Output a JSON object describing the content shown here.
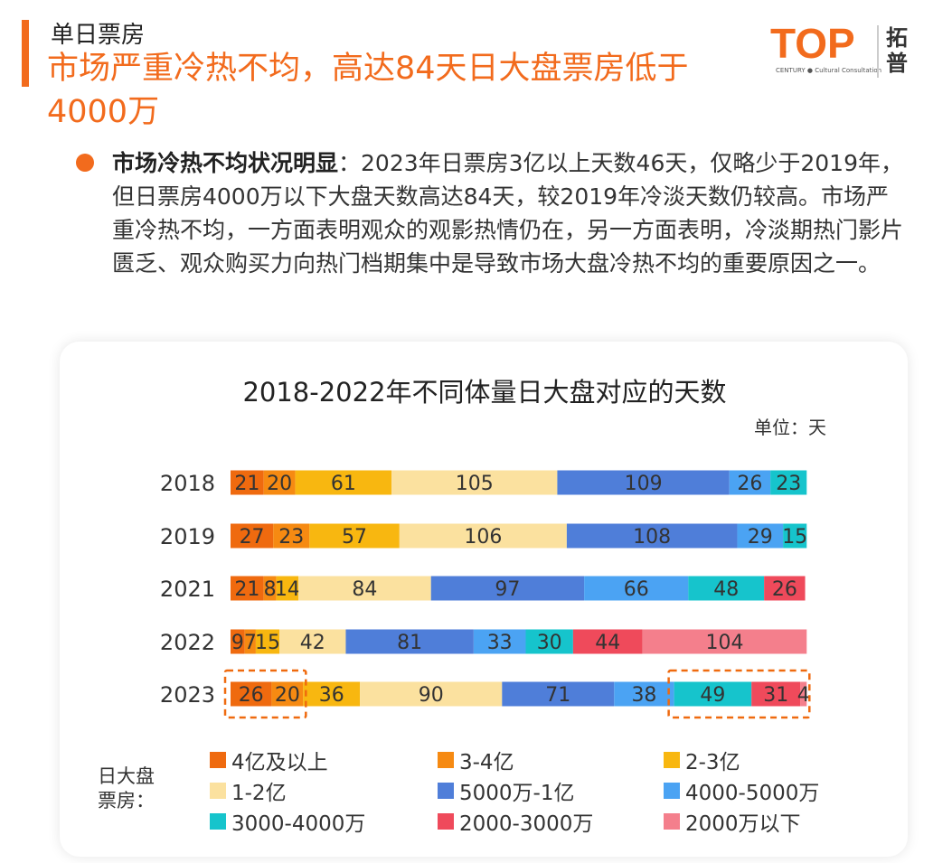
{
  "header": {
    "section_label": "单日票房",
    "headline": "市场严重冷热不均，高达84天日大盘票房低于4000万",
    "logo_text": "TOP",
    "logo_sub": "CENTURY ● Cultural Consultation",
    "logo_cn": "拓普"
  },
  "bullet": {
    "lead": "市场冷热不均状况明显",
    "text": "：2023年日票房3亿以上天数46天，仅略少于2019年，但日票房4000万以下大盘天数高达84天，较2019年冷淡天数仍较高。市场严重冷热不均，一方面表明观众的观影热情仍在，另一方面表明，冷淡期热门影片匮乏、观众购买力向热门档期集中是导致市场大盘冷热不均的重要原因之一。"
  },
  "legend_title": "日大盘票房：",
  "chart_data": {
    "type": "bar",
    "orientation": "horizontal",
    "stacked": true,
    "title": "2018-2022年不同体量日大盘对应的天数",
    "unit": "单位：天",
    "categories": [
      "2018",
      "2019",
      "2021",
      "2022",
      "2023"
    ],
    "series": [
      {
        "name": "4亿及以上",
        "color": "#ef6a0f",
        "values": [
          21,
          27,
          21,
          9,
          26
        ]
      },
      {
        "name": "3-4亿",
        "color": "#f68a12",
        "values": [
          20,
          23,
          8,
          7,
          20
        ]
      },
      {
        "name": "2-3亿",
        "color": "#f8b710",
        "values": [
          61,
          57,
          14,
          15,
          36
        ]
      },
      {
        "name": "1-2亿",
        "color": "#fbe19f",
        "values": [
          105,
          106,
          84,
          42,
          90
        ]
      },
      {
        "name": "5000万-1亿",
        "color": "#4f7ed9",
        "values": [
          109,
          108,
          97,
          81,
          71
        ]
      },
      {
        "name": "4000-5000万",
        "color": "#4ba3f3",
        "values": [
          26,
          29,
          66,
          33,
          38
        ]
      },
      {
        "name": "3000-4000万",
        "color": "#16c4cc",
        "values": [
          23,
          15,
          48,
          30,
          49
        ]
      },
      {
        "name": "2000-3000万",
        "color": "#ef4a5b",
        "values": [
          0,
          0,
          26,
          44,
          31
        ]
      },
      {
        "name": "2000万以下",
        "color": "#f47f8c",
        "values": [
          0,
          0,
          0,
          104,
          4
        ]
      }
    ],
    "highlights": [
      {
        "category": "2023",
        "series": [
          "4亿及以上",
          "3-4亿"
        ]
      },
      {
        "category": "2023",
        "series": [
          "3000-4000万",
          "2000-3000万",
          "2000万以下"
        ]
      }
    ]
  }
}
